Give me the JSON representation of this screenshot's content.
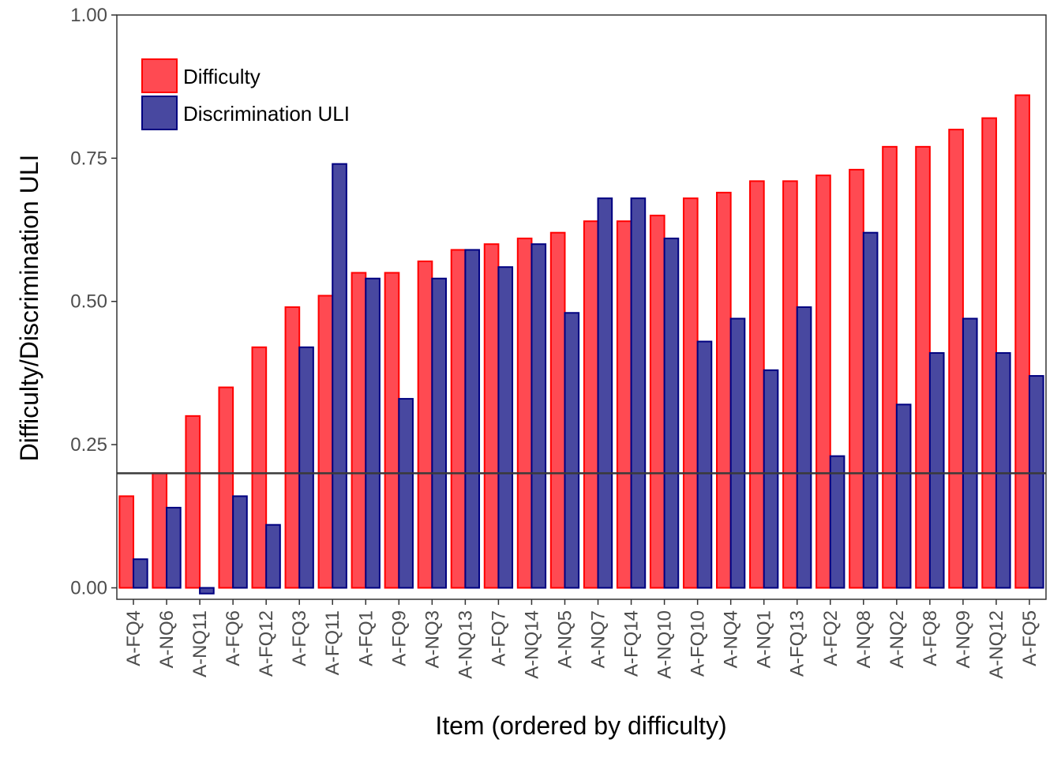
{
  "chart_data": {
    "type": "bar",
    "title": "",
    "xlabel": "Item (ordered by difficulty)",
    "ylabel": "Difficulty/Discrimination ULI",
    "ylim": [
      -0.02,
      1.0
    ],
    "yticks": [
      "0.00",
      "0.25",
      "0.50",
      "0.75",
      "1.00"
    ],
    "grid": false,
    "legend_position": "top-left",
    "reference_line": 0.2,
    "categories": [
      "A-FQ4",
      "A-NQ6",
      "A-NQ11",
      "A-FQ6",
      "A-FQ12",
      "A-FQ3",
      "A-FQ11",
      "A-FQ1",
      "A-FQ9",
      "A-NQ3",
      "A-NQ13",
      "A-FQ7",
      "A-NQ14",
      "A-NQ5",
      "A-NQ7",
      "A-FQ14",
      "A-NQ10",
      "A-FQ10",
      "A-NQ4",
      "A-NQ1",
      "A-FQ13",
      "A-FQ2",
      "A-NQ8",
      "A-NQ2",
      "A-FQ8",
      "A-NQ9",
      "A-NQ12",
      "A-FQ5"
    ],
    "series": [
      {
        "name": "Difficulty",
        "fill": "#ff4a52",
        "stroke": "#ff0000",
        "values": [
          0.16,
          0.2,
          0.3,
          0.35,
          0.42,
          0.49,
          0.51,
          0.55,
          0.55,
          0.57,
          0.59,
          0.6,
          0.61,
          0.62,
          0.64,
          0.64,
          0.65,
          0.68,
          0.69,
          0.71,
          0.71,
          0.72,
          0.73,
          0.77,
          0.77,
          0.8,
          0.82,
          0.86
        ]
      },
      {
        "name": "Discrimination ULI",
        "fill": "#4848a0",
        "stroke": "#000080",
        "values": [
          0.05,
          0.14,
          -0.01,
          0.16,
          0.11,
          0.42,
          0.74,
          0.54,
          0.33,
          0.54,
          0.59,
          0.56,
          0.6,
          0.48,
          0.68,
          0.68,
          0.61,
          0.43,
          0.47,
          0.38,
          0.49,
          0.23,
          0.62,
          0.32,
          0.41,
          0.47,
          0.41,
          0.37
        ]
      }
    ]
  }
}
